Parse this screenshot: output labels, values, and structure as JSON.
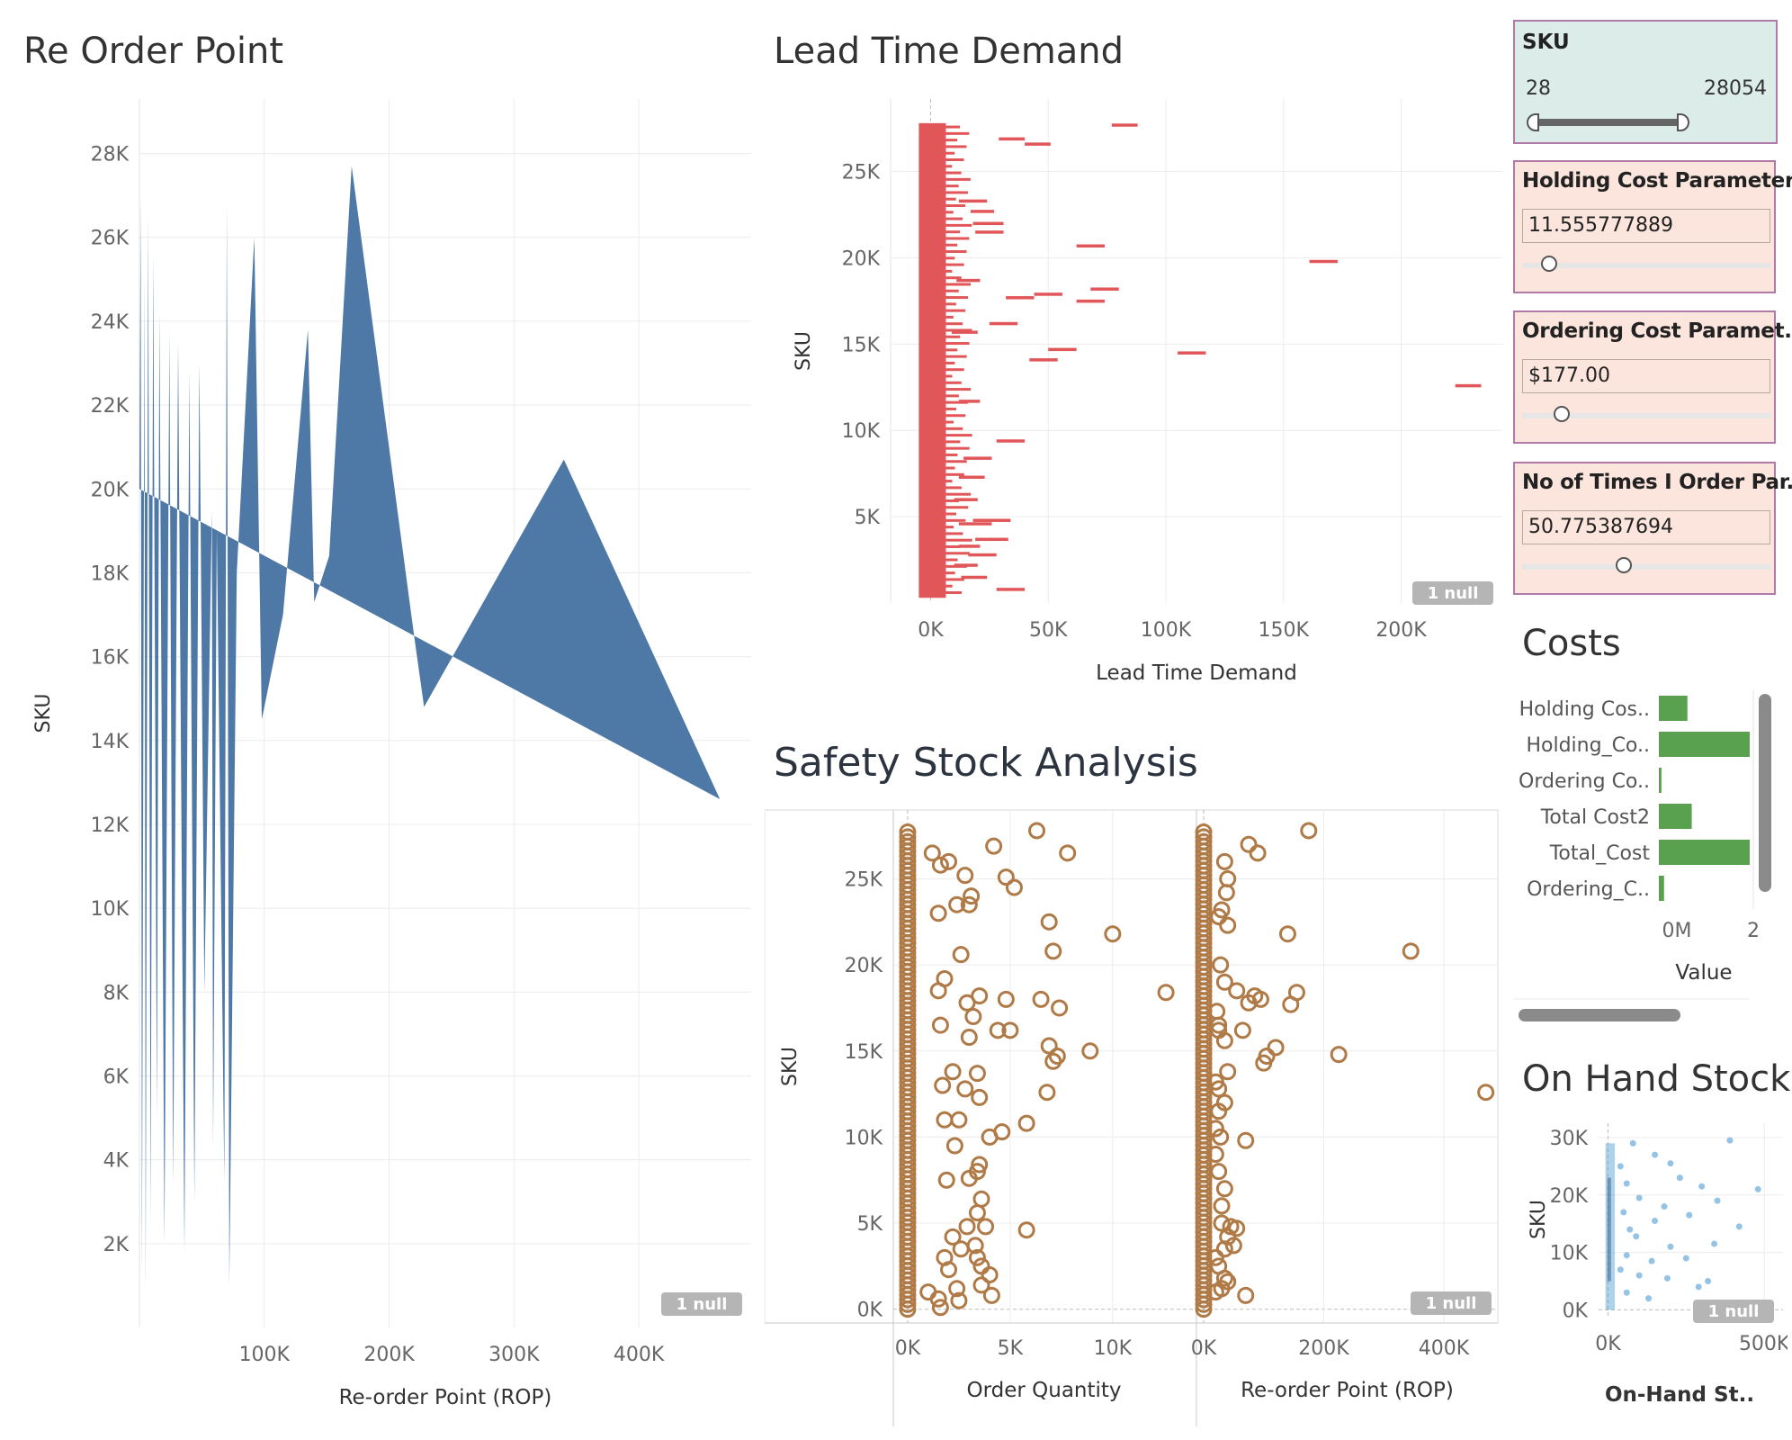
{
  "reorder_point": {
    "title": "Re Order Point",
    "null_label": "1 null",
    "chart_data": {
      "type": "area",
      "xlabel": "Re-order Point (ROP)",
      "ylabel": "SKU",
      "xlim": [
        0,
        490000
      ],
      "ylim": [
        0,
        29300
      ],
      "x_ticks": [
        100000,
        200000,
        300000,
        400000
      ],
      "x_tick_labels": [
        "100K",
        "200K",
        "300K",
        "400K"
      ],
      "y_ticks": [
        2000,
        4000,
        6000,
        8000,
        10000,
        12000,
        14000,
        16000,
        18000,
        20000,
        22000,
        24000,
        26000,
        28000
      ],
      "y_tick_labels": [
        "2K",
        "4K",
        "6K",
        "8K",
        "10K",
        "12K",
        "14K",
        "16K",
        "18K",
        "20K",
        "22K",
        "24K",
        "26K",
        "28K"
      ],
      "color": "#4e79a7",
      "points": [
        {
          "x": 0,
          "y": 20000
        },
        {
          "x": 1000,
          "y": 27000
        },
        {
          "x": 2000,
          "y": 1200
        },
        {
          "x": 4000,
          "y": 25000
        },
        {
          "x": 5000,
          "y": 800
        },
        {
          "x": 7000,
          "y": 26500
        },
        {
          "x": 9000,
          "y": 2500
        },
        {
          "x": 11000,
          "y": 25600
        },
        {
          "x": 14000,
          "y": 5000
        },
        {
          "x": 16000,
          "y": 24200
        },
        {
          "x": 20000,
          "y": 2000
        },
        {
          "x": 24000,
          "y": 23700
        },
        {
          "x": 27000,
          "y": 3400
        },
        {
          "x": 31000,
          "y": 23500
        },
        {
          "x": 36000,
          "y": 1800
        },
        {
          "x": 40000,
          "y": 22800
        },
        {
          "x": 44000,
          "y": 3000
        },
        {
          "x": 48000,
          "y": 23000
        },
        {
          "x": 52000,
          "y": 8000
        },
        {
          "x": 58000,
          "y": 19500
        },
        {
          "x": 59000,
          "y": 4300
        },
        {
          "x": 62000,
          "y": 19000
        },
        {
          "x": 68000,
          "y": 3500
        },
        {
          "x": 70000,
          "y": 26800
        },
        {
          "x": 72000,
          "y": 1000
        },
        {
          "x": 78000,
          "y": 18000
        },
        {
          "x": 92000,
          "y": 26000
        },
        {
          "x": 98000,
          "y": 14500
        },
        {
          "x": 115000,
          "y": 17000
        },
        {
          "x": 135000,
          "y": 23800
        },
        {
          "x": 140000,
          "y": 17300
        },
        {
          "x": 152000,
          "y": 18400
        },
        {
          "x": 170000,
          "y": 27700
        },
        {
          "x": 220000,
          "y": 16500
        },
        {
          "x": 228000,
          "y": 14800
        },
        {
          "x": 340000,
          "y": 20700
        },
        {
          "x": 465000,
          "y": 12600
        }
      ]
    }
  },
  "lead_time_demand": {
    "title": "Lead Time Demand",
    "null_label": "1 null",
    "chart_data": {
      "type": "bar",
      "xlabel": "Lead Time Demand",
      "ylabel": "SKU",
      "xlim": [
        -17000,
        243000
      ],
      "ylim": [
        0,
        29200
      ],
      "x_ticks": [
        0,
        50000,
        100000,
        150000,
        200000
      ],
      "x_tick_labels": [
        "0K",
        "50K",
        "100K",
        "150K",
        "200K"
      ],
      "y_ticks": [
        5000,
        10000,
        15000,
        20000,
        25000
      ],
      "y_tick_labels": [
        "5K",
        "10K",
        "15K",
        "20K",
        "25K"
      ],
      "color": "#e15759",
      "dense_band": {
        "x_from": -5000,
        "x_to": 6500,
        "y_from": 300,
        "y_to": 27800
      },
      "segments": [
        {
          "y": 27700,
          "x1": 77000,
          "x2": 88000
        },
        {
          "y": 26900,
          "x1": 29000,
          "x2": 40000
        },
        {
          "y": 26600,
          "x1": 40000,
          "x2": 51000
        },
        {
          "y": 23300,
          "x1": 12000,
          "x2": 24000
        },
        {
          "y": 22700,
          "x1": 17000,
          "x2": 27000
        },
        {
          "y": 22000,
          "x1": 18000,
          "x2": 31000
        },
        {
          "y": 21500,
          "x1": 19000,
          "x2": 31000
        },
        {
          "y": 20700,
          "x1": 62000,
          "x2": 74000
        },
        {
          "y": 19800,
          "x1": 161000,
          "x2": 173000
        },
        {
          "y": 18700,
          "x1": 11000,
          "x2": 21000
        },
        {
          "y": 18200,
          "x1": 68000,
          "x2": 80000
        },
        {
          "y": 17900,
          "x1": 44000,
          "x2": 56000
        },
        {
          "y": 17700,
          "x1": 32000,
          "x2": 44000
        },
        {
          "y": 17500,
          "x1": 62000,
          "x2": 74000
        },
        {
          "y": 16200,
          "x1": 25000,
          "x2": 37000
        },
        {
          "y": 15700,
          "x1": 9000,
          "x2": 20000
        },
        {
          "y": 14700,
          "x1": 50000,
          "x2": 62000
        },
        {
          "y": 14500,
          "x1": 105000,
          "x2": 117000
        },
        {
          "y": 14100,
          "x1": 42000,
          "x2": 54000
        },
        {
          "y": 12600,
          "x1": 223000,
          "x2": 234000
        },
        {
          "y": 11700,
          "x1": 12000,
          "x2": 21000
        },
        {
          "y": 9400,
          "x1": 28000,
          "x2": 40000
        },
        {
          "y": 8400,
          "x1": 14000,
          "x2": 26000
        },
        {
          "y": 7300,
          "x1": 12000,
          "x2": 23000
        },
        {
          "y": 6000,
          "x1": 10000,
          "x2": 20000
        },
        {
          "y": 4800,
          "x1": 18000,
          "x2": 34000
        },
        {
          "y": 4600,
          "x1": 12000,
          "x2": 26000
        },
        {
          "y": 3700,
          "x1": 19000,
          "x2": 33000
        },
        {
          "y": 3300,
          "x1": 12000,
          "x2": 21000
        },
        {
          "y": 2800,
          "x1": 16000,
          "x2": 28000
        },
        {
          "y": 2200,
          "x1": 10000,
          "x2": 20000
        },
        {
          "y": 1500,
          "x1": 13000,
          "x2": 24000
        },
        {
          "y": 800,
          "x1": 28000,
          "x2": 40000
        }
      ]
    }
  },
  "sku_filter": {
    "label": "SKU",
    "min": "28",
    "max": "28054",
    "range_min": 28,
    "range_max": 28054,
    "selected_min": 28,
    "selected_max": 28054
  },
  "parameters": [
    {
      "label": "Holding Cost Parameter",
      "value": "11.555777889",
      "slider": 0.11
    },
    {
      "label": "Ordering Cost Paramet..",
      "value": "$177.00",
      "slider": 0.16
    },
    {
      "label": "No of Times I Order Par..",
      "value": "50.775387694",
      "slider": 0.41
    }
  ],
  "costs": {
    "title": "Costs",
    "chart_data": {
      "type": "bar",
      "orientation": "horizontal",
      "xlabel": "Value",
      "x_tick_labels": [
        "0M",
        "2"
      ],
      "color": "#59a14f",
      "categories": [
        "Holding Cos..",
        "Holding_Co..",
        "Ordering Co..",
        "Total Cost2",
        "Total_Cost",
        "Ordering_C.."
      ],
      "values": [
        0.33,
        1.05,
        0.03,
        0.38,
        1.05,
        0.06
      ]
    }
  },
  "safety_stock": {
    "title": "Safety Stock Analysis",
    "null_label": "1 null",
    "ylabel": "SKU",
    "y_ticks": [
      0,
      5000,
      10000,
      15000,
      20000,
      25000
    ],
    "y_tick_labels": [
      "0K",
      "5K",
      "10K",
      "15K",
      "20K",
      "25K"
    ],
    "ylim": [
      -800,
      29000
    ],
    "marker_color": "#b07a47",
    "panels": [
      {
        "xlabel": "Order Quantity",
        "xlim": [
          -700,
          14000
        ],
        "x_ticks": [
          0,
          5000,
          10000
        ],
        "x_tick_labels": [
          "0K",
          "5K",
          "10K"
        ],
        "points": [
          [
            1200,
            26500
          ],
          [
            1600,
            25800
          ],
          [
            2000,
            26000
          ],
          [
            2800,
            25200
          ],
          [
            4200,
            26900
          ],
          [
            6300,
            27800
          ],
          [
            7800,
            26500
          ],
          [
            4800,
            25100
          ],
          [
            5200,
            24500
          ],
          [
            3100,
            24000
          ],
          [
            2400,
            23500
          ],
          [
            3000,
            23500
          ],
          [
            1500,
            23000
          ],
          [
            6900,
            22500
          ],
          [
            10000,
            21800
          ],
          [
            7100,
            20800
          ],
          [
            2600,
            20600
          ],
          [
            1800,
            19200
          ],
          [
            1500,
            18500
          ],
          [
            3500,
            18200
          ],
          [
            4800,
            18000
          ],
          [
            6500,
            18000
          ],
          [
            7400,
            17500
          ],
          [
            12600,
            18400
          ],
          [
            2900,
            17800
          ],
          [
            3200,
            17000
          ],
          [
            1600,
            16500
          ],
          [
            4400,
            16200
          ],
          [
            5000,
            16200
          ],
          [
            3000,
            15800
          ],
          [
            6900,
            15300
          ],
          [
            7300,
            14700
          ],
          [
            8900,
            15000
          ],
          [
            7100,
            14400
          ],
          [
            2200,
            13800
          ],
          [
            3400,
            13700
          ],
          [
            1700,
            13000
          ],
          [
            2800,
            12800
          ],
          [
            6800,
            12600
          ],
          [
            3500,
            12300
          ],
          [
            1800,
            11000
          ],
          [
            2500,
            11000
          ],
          [
            4000,
            10000
          ],
          [
            5800,
            10800
          ],
          [
            4600,
            10300
          ],
          [
            2300,
            9500
          ],
          [
            3400,
            8000
          ],
          [
            3000,
            7600
          ],
          [
            1900,
            7500
          ],
          [
            3500,
            8400
          ],
          [
            3600,
            6400
          ],
          [
            3400,
            5600
          ],
          [
            2900,
            4800
          ],
          [
            3800,
            4800
          ],
          [
            5800,
            4600
          ],
          [
            2200,
            4200
          ],
          [
            2600,
            3500
          ],
          [
            3300,
            3700
          ],
          [
            1800,
            3000
          ],
          [
            3400,
            3000
          ],
          [
            3600,
            2500
          ],
          [
            4000,
            2000
          ],
          [
            2000,
            2300
          ],
          [
            3600,
            1400
          ],
          [
            2400,
            1200
          ],
          [
            4100,
            800
          ],
          [
            1000,
            1000
          ],
          [
            1500,
            600
          ],
          [
            2500,
            500
          ],
          [
            1600,
            100
          ]
        ]
      },
      {
        "xlabel": "Re-order Point (ROP)",
        "xlim": [
          -12000,
          490000
        ],
        "x_ticks": [
          0,
          200000,
          400000
        ],
        "x_tick_labels": [
          "0K",
          "200K",
          "400K"
        ],
        "points": [
          [
            175000,
            27800
          ],
          [
            75000,
            27000
          ],
          [
            90000,
            26500
          ],
          [
            35000,
            26000
          ],
          [
            40000,
            25000
          ],
          [
            38000,
            24200
          ],
          [
            30000,
            23200
          ],
          [
            25000,
            22800
          ],
          [
            40000,
            22300
          ],
          [
            140000,
            21800
          ],
          [
            345000,
            20800
          ],
          [
            28000,
            20000
          ],
          [
            35000,
            19000
          ],
          [
            55000,
            18500
          ],
          [
            85000,
            18200
          ],
          [
            95000,
            18000
          ],
          [
            75000,
            17800
          ],
          [
            155000,
            18400
          ],
          [
            145000,
            17700
          ],
          [
            22000,
            17300
          ],
          [
            25000,
            16500
          ],
          [
            25000,
            16200
          ],
          [
            65000,
            16200
          ],
          [
            35000,
            15600
          ],
          [
            120000,
            15200
          ],
          [
            225000,
            14800
          ],
          [
            105000,
            14700
          ],
          [
            100000,
            14300
          ],
          [
            40000,
            13800
          ],
          [
            20000,
            13200
          ],
          [
            470000,
            12600
          ],
          [
            25000,
            12800
          ],
          [
            35000,
            12000
          ],
          [
            25000,
            11500
          ],
          [
            20000,
            10500
          ],
          [
            28000,
            10000
          ],
          [
            70000,
            9800
          ],
          [
            20000,
            9000
          ],
          [
            25000,
            8000
          ],
          [
            35000,
            7000
          ],
          [
            30000,
            6000
          ],
          [
            30000,
            5000
          ],
          [
            45000,
            4800
          ],
          [
            55000,
            4700
          ],
          [
            40000,
            4200
          ],
          [
            35000,
            3500
          ],
          [
            50000,
            3700
          ],
          [
            20000,
            3000
          ],
          [
            25000,
            2500
          ],
          [
            35000,
            1800
          ],
          [
            40000,
            1600
          ],
          [
            30000,
            1200
          ],
          [
            20000,
            1000
          ],
          [
            70000,
            800
          ]
        ]
      }
    ]
  },
  "on_hand_stock": {
    "title": "On Hand Stock",
    "null_label": "1 null",
    "chart_data": {
      "type": "scatter",
      "xlabel": "On-Hand St..",
      "ylabel": "SKU",
      "xlim": [
        -30000,
        560000
      ],
      "ylim": [
        -1500,
        32500
      ],
      "x_ticks": [
        0,
        500000
      ],
      "x_tick_labels": [
        "0K",
        "500K"
      ],
      "y_ticks": [
        0,
        10000,
        20000,
        30000
      ],
      "y_tick_labels": [
        "0K",
        "10K",
        "20K",
        "30K"
      ],
      "color": "#4e9bd3",
      "points": [
        [
          80000,
          29000
        ],
        [
          150000,
          27000
        ],
        [
          200000,
          25500
        ],
        [
          390000,
          29500
        ],
        [
          230000,
          23000
        ],
        [
          300000,
          21500
        ],
        [
          480000,
          21000
        ],
        [
          100000,
          19500
        ],
        [
          180000,
          18000
        ],
        [
          350000,
          19000
        ],
        [
          260000,
          16500
        ],
        [
          150000,
          15500
        ],
        [
          420000,
          14500
        ],
        [
          90000,
          12800
        ],
        [
          200000,
          11000
        ],
        [
          340000,
          11500
        ],
        [
          60000,
          9500
        ],
        [
          140000,
          8500
        ],
        [
          250000,
          9000
        ],
        [
          100000,
          6000
        ],
        [
          190000,
          5500
        ],
        [
          320000,
          5000
        ],
        [
          60000,
          3000
        ],
        [
          130000,
          2000
        ],
        [
          290000,
          4000
        ],
        [
          40000,
          25000
        ],
        [
          60000,
          22000
        ],
        [
          50000,
          17000
        ],
        [
          70000,
          14000
        ],
        [
          40000,
          7000
        ]
      ]
    }
  }
}
